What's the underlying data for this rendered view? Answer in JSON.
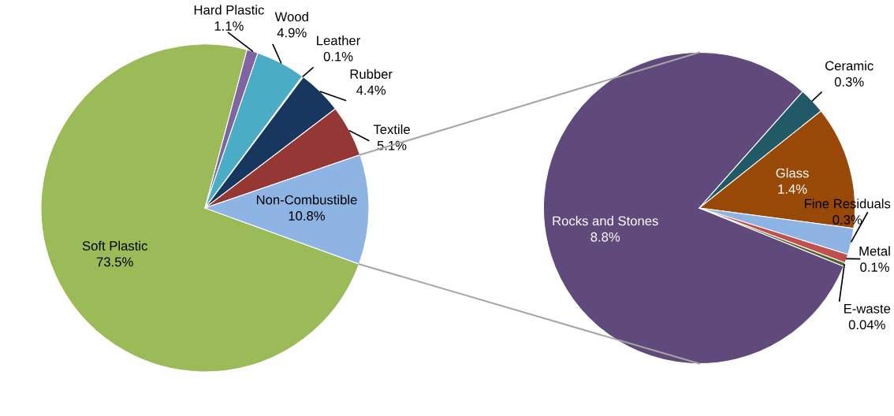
{
  "chart_data": [
    {
      "type": "pie",
      "categories": [
        "Soft Plastic",
        "Hard Plastic",
        "Wood",
        "Leather",
        "Rubber",
        "Textile",
        "Non-Combustible"
      ],
      "values": [
        73.5,
        1.1,
        4.9,
        0.1,
        4.4,
        5.1,
        10.8
      ],
      "value_labels": [
        "73.5%",
        "1.1%",
        "4.9%",
        "0.1%",
        "4.4%",
        "5.1%",
        "10.8%"
      ],
      "colors": [
        "#9bbb59",
        "#8064a2",
        "#4bacc6",
        "#f79646",
        "#17375e",
        "#953735",
        "#8eb4e3"
      ]
    },
    {
      "type": "pie",
      "categories": [
        "Rocks and Stones",
        "Ceramic",
        "Glass",
        "Fine Residuals",
        "Metal",
        "E-waste"
      ],
      "values": [
        8.8,
        0.3,
        1.4,
        0.3,
        0.1,
        0.04
      ],
      "value_labels": [
        "8.8%",
        "0.3%",
        "1.4%",
        "0.3%",
        "0.1%",
        "0.04%"
      ],
      "colors": [
        "#604a7b",
        "#215967",
        "#984807",
        "#8eb4e3",
        "#c0504d",
        "#4f6228"
      ]
    }
  ]
}
